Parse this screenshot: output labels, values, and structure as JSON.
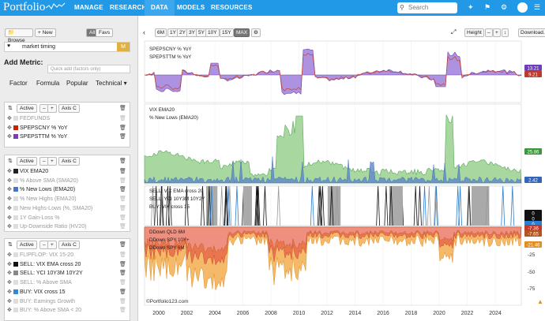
{
  "header": {
    "logo": "Portfolio",
    "nav": [
      "MANAGE",
      "RESEARCH",
      "DATA",
      "MODELS",
      "RESOURCES"
    ],
    "active": "DATA",
    "search_placeholder": "Search"
  },
  "left": {
    "browse": "Browse",
    "new": "+ New",
    "all": "All",
    "favs": "Favs",
    "folder_name": "market timing",
    "add_metric": "Add Metric:",
    "quick_add": "Quick add (factors only)",
    "tabs": [
      "Factor",
      "Formula",
      "Popular",
      "Technical"
    ],
    "cards": [
      {
        "active": "Active",
        "axis": "Axis C",
        "items": [
          {
            "label": "FEDFUNDS",
            "color": "#dddddd",
            "on": false
          },
          {
            "label": "SPEPSCNY % YoY",
            "color": "#cc2200",
            "on": true
          },
          {
            "label": "SPEPSTTM % YoY",
            "color": "#7a3fb0",
            "on": true
          }
        ]
      },
      {
        "active": "Active",
        "axis": "Axis C",
        "items": [
          {
            "label": "VIX EMA20",
            "color": "#222222",
            "on": true
          },
          {
            "label": "% Above SMA (SMA20)",
            "color": "#dddddd",
            "on": false
          },
          {
            "label": "% New Lows (EMA20)",
            "color": "#4477cc",
            "on": true
          },
          {
            "label": "% New Highs (EMA20)",
            "color": "#dddddd",
            "on": false
          },
          {
            "label": "New Highs-Lows (%, SMA20)",
            "color": "#dddddd",
            "on": false
          },
          {
            "label": "1Y Gain-Loss %",
            "color": "#dddddd",
            "on": false
          },
          {
            "label": "Up-Downside Ratio (HV20)",
            "color": "#dddddd",
            "on": false
          }
        ]
      },
      {
        "active": "Active",
        "axis": "Axis C",
        "items": [
          {
            "label": "FLIPFLOP: VIX 15-20",
            "color": "#dddddd",
            "on": false
          },
          {
            "label": "SELL: VIX EMA cross 20",
            "color": "#111111",
            "on": true
          },
          {
            "label": "SELL: YCI 10Y3M 10Y2Y",
            "color": "#888888",
            "on": true
          },
          {
            "label": "SELL: % Above SMA",
            "color": "#dddddd",
            "on": false
          },
          {
            "label": "BUY: VIX cross 15",
            "color": "#3388dd",
            "on": true
          },
          {
            "label": "BUY: Earnings Growth",
            "color": "#dddddd",
            "on": false
          },
          {
            "label": "BUY: % Above SMA < 20",
            "color": "#dddddd",
            "on": false
          }
        ]
      }
    ]
  },
  "toolbar": {
    "ranges": [
      "6M",
      "1Y",
      "2Y",
      "3Y",
      "5Y",
      "10Y",
      "15Y",
      "MAX"
    ],
    "selected": "MAX",
    "height": "Height",
    "download": "Download..."
  },
  "panels": {
    "p1": [
      "SPEPSCNY % YoY",
      "SPEPSTTM % YoY"
    ],
    "p2": [
      "VIX EMA20",
      "% New Lows (EMA20)"
    ],
    "p3": [
      "SELL: VIX EMA cross 20",
      "SELL: YCI 10Y3M 10Y2Y",
      "BUY: VIX cross 15"
    ],
    "p4": [
      "DDown QLD 6M",
      "DDown SPY 10Y+",
      "DDown SPY 6M"
    ]
  },
  "tags": [
    {
      "v": "13.21",
      "c": "#6a3fb8"
    },
    {
      "v": "9.21",
      "c": "#c0392b"
    },
    {
      "v": "25.86",
      "c": "#3a9a3a"
    },
    {
      "v": "2.42",
      "c": "#3366bb"
    },
    {
      "v": "0",
      "c": "#111"
    },
    {
      "v": "0",
      "c": "#111"
    },
    {
      "v": "0",
      "c": "#2a7fd0"
    },
    {
      "v": "-7.36",
      "c": "#c0392b"
    },
    {
      "v": "-7.65",
      "c": "#b5541c"
    },
    {
      "v": "-21.46",
      "c": "#e09020"
    }
  ],
  "yticks": [
    "-25",
    "-50",
    "-75"
  ],
  "xaxis": [
    "2000",
    "2002",
    "2004",
    "2006",
    "2008",
    "2010",
    "2012",
    "2014",
    "2016",
    "2018",
    "2020",
    "2022",
    "2024"
  ],
  "credit": "©Portfolio123.com"
}
